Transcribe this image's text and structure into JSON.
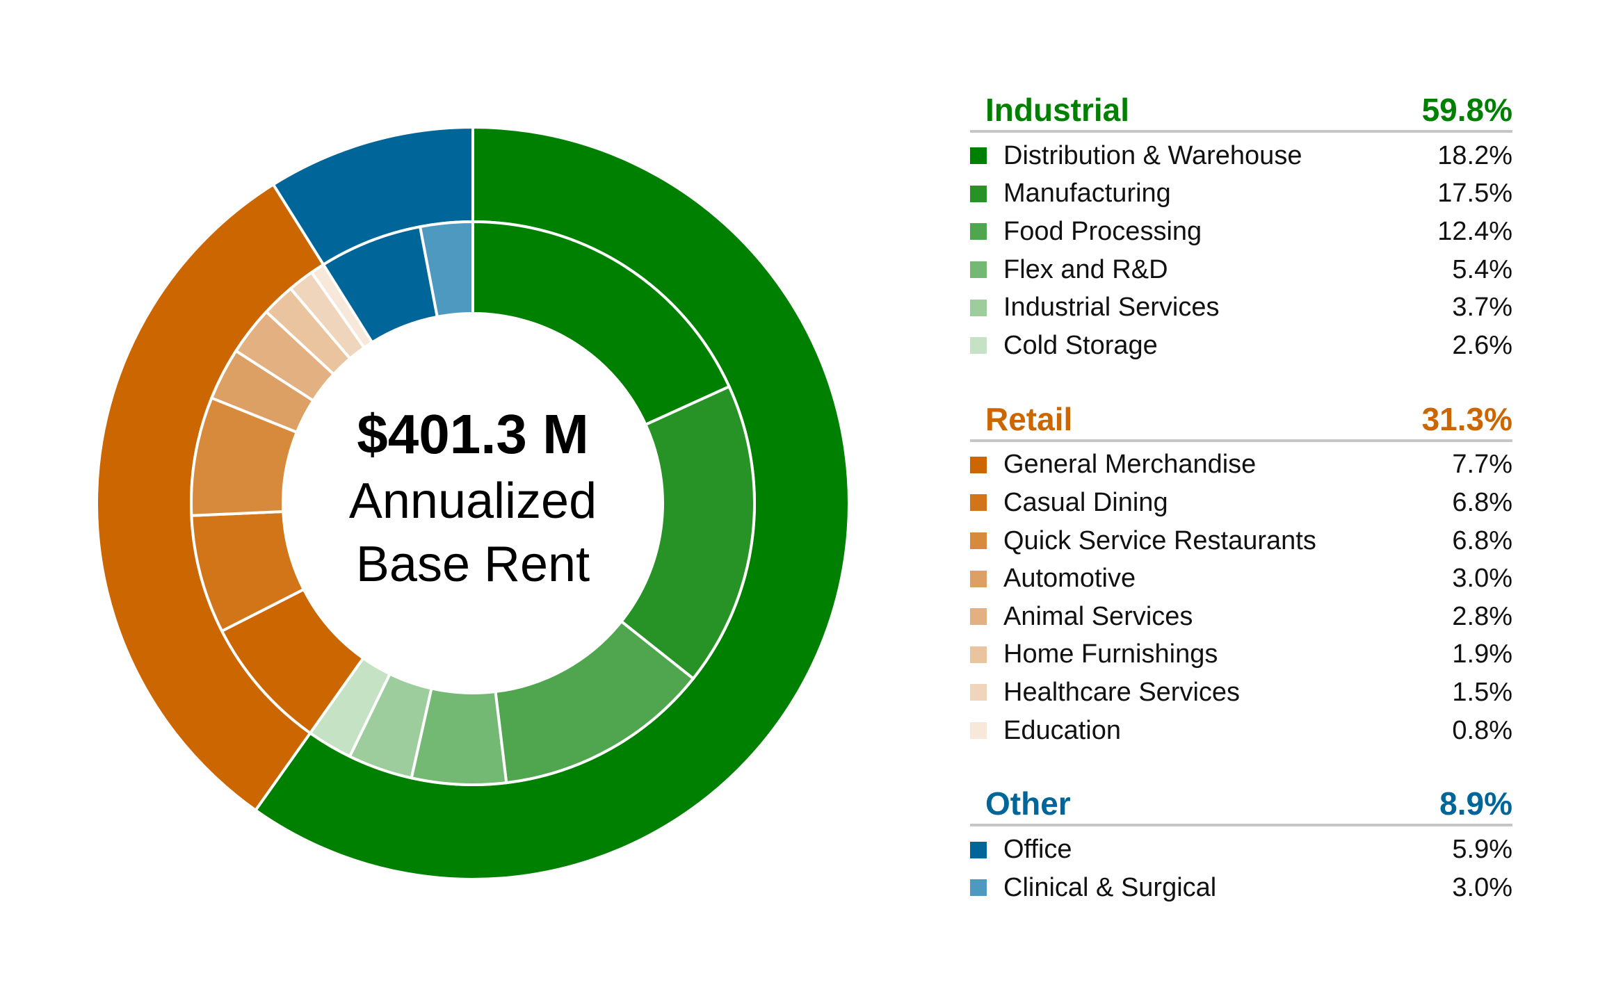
{
  "center": {
    "amount": "$401.3 M",
    "line1": "Annualized",
    "line2": "Base Rent"
  },
  "chart_data": {
    "type": "pie",
    "groups": [
      {
        "name": "Industrial",
        "value": 59.8,
        "value_label": "59.8%",
        "color": "#008000",
        "items": [
          {
            "name": "Distribution & Warehouse",
            "value": 18.2,
            "value_label": "18.2%",
            "color": "#008000"
          },
          {
            "name": "Manufacturing",
            "value": 17.5,
            "value_label": "17.5%",
            "color": "#279327"
          },
          {
            "name": "Food Processing",
            "value": 12.4,
            "value_label": "12.4%",
            "color": "#4fa64f"
          },
          {
            "name": "Flex and R&D",
            "value": 5.4,
            "value_label": "5.4%",
            "color": "#73b873"
          },
          {
            "name": "Industrial Services",
            "value": 3.7,
            "value_label": "3.7%",
            "color": "#9dcd9d"
          },
          {
            "name": "Cold Storage",
            "value": 2.6,
            "value_label": "2.6%",
            "color": "#c5e2c5"
          }
        ]
      },
      {
        "name": "Retail",
        "value": 31.3,
        "value_label": "31.3%",
        "color": "#cc6600",
        "items": [
          {
            "name": "General Merchandise",
            "value": 7.7,
            "value_label": "7.7%",
            "color": "#cc6600"
          },
          {
            "name": "Casual Dining",
            "value": 6.8,
            "value_label": "6.8%",
            "color": "#d27519"
          },
          {
            "name": "Quick Service Restaurants",
            "value": 6.8,
            "value_label": "6.8%",
            "color": "#d78a3c"
          },
          {
            "name": "Automotive",
            "value": 3.0,
            "value_label": "3.0%",
            "color": "#dda064"
          },
          {
            "name": "Animal Services",
            "value": 2.8,
            "value_label": "2.8%",
            "color": "#e3b181"
          },
          {
            "name": "Home Furnishings",
            "value": 1.9,
            "value_label": "1.9%",
            "color": "#eac39f"
          },
          {
            "name": "Healthcare Services",
            "value": 1.5,
            "value_label": "1.5%",
            "color": "#f0d5bd"
          },
          {
            "name": "Education",
            "value": 0.8,
            "value_label": "0.8%",
            "color": "#f7e8da"
          }
        ]
      },
      {
        "name": "Other",
        "value": 8.9,
        "value_label": "8.9%",
        "color": "#006699",
        "items": [
          {
            "name": "Office",
            "value": 5.9,
            "value_label": "5.9%",
            "color": "#006699"
          },
          {
            "name": "Clinical & Surgical",
            "value": 3.0,
            "value_label": "3.0%",
            "color": "#4d99c0"
          }
        ]
      }
    ]
  }
}
